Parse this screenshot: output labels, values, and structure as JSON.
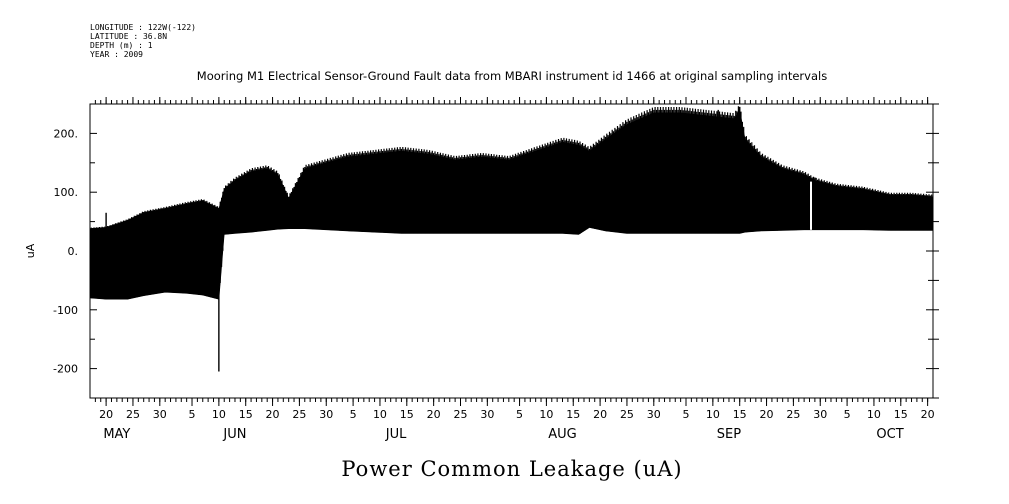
{
  "meta": {
    "lines": [
      "LONGITUDE : 122W(-122)",
      "LATITUDE : 36.8N",
      "DEPTH (m) : 1",
      "YEAR : 2009"
    ]
  },
  "chart_data": {
    "type": "line",
    "title": "Mooring M1 Electrical Sensor-Ground Fault data from MBARI instrument id 1466 at original sampling intervals",
    "xlabel": "Power Common Leakage (uA)",
    "ylabel": "uA",
    "xlim": [
      "2009-05-17",
      "2009-10-21"
    ],
    "ylim": [
      -250,
      250
    ],
    "y_ticks": [
      {
        "value": 200,
        "label": "200."
      },
      {
        "value": 100,
        "label": "100."
      },
      {
        "value": 0,
        "label": "0."
      },
      {
        "value": -100,
        "label": "-100"
      },
      {
        "value": -200,
        "label": "-200"
      }
    ],
    "x_ticks": [
      {
        "date": "2009-05-20",
        "label": "20"
      },
      {
        "date": "2009-05-25",
        "label": "25"
      },
      {
        "date": "2009-05-30",
        "label": "30"
      },
      {
        "date": "2009-06-05",
        "label": "5"
      },
      {
        "date": "2009-06-10",
        "label": "10"
      },
      {
        "date": "2009-06-15",
        "label": "15"
      },
      {
        "date": "2009-06-20",
        "label": "20"
      },
      {
        "date": "2009-06-25",
        "label": "25"
      },
      {
        "date": "2009-06-30",
        "label": "30"
      },
      {
        "date": "2009-07-05",
        "label": "5"
      },
      {
        "date": "2009-07-10",
        "label": "10"
      },
      {
        "date": "2009-07-15",
        "label": "15"
      },
      {
        "date": "2009-07-20",
        "label": "20"
      },
      {
        "date": "2009-07-25",
        "label": "25"
      },
      {
        "date": "2009-07-30",
        "label": "30"
      },
      {
        "date": "2009-08-05",
        "label": "5"
      },
      {
        "date": "2009-08-10",
        "label": "10"
      },
      {
        "date": "2009-08-15",
        "label": "15"
      },
      {
        "date": "2009-08-20",
        "label": "20"
      },
      {
        "date": "2009-08-25",
        "label": "25"
      },
      {
        "date": "2009-08-30",
        "label": "30"
      },
      {
        "date": "2009-09-05",
        "label": "5"
      },
      {
        "date": "2009-09-10",
        "label": "10"
      },
      {
        "date": "2009-09-15",
        "label": "15"
      },
      {
        "date": "2009-09-20",
        "label": "20"
      },
      {
        "date": "2009-09-25",
        "label": "25"
      },
      {
        "date": "2009-09-30",
        "label": "30"
      },
      {
        "date": "2009-10-05",
        "label": "5"
      },
      {
        "date": "2009-10-10",
        "label": "10"
      },
      {
        "date": "2009-10-15",
        "label": "15"
      },
      {
        "date": "2009-10-20",
        "label": "20"
      }
    ],
    "months": [
      {
        "date": "2009-05-22",
        "label": "MAY"
      },
      {
        "date": "2009-06-13",
        "label": "JUN"
      },
      {
        "date": "2009-07-13",
        "label": "JUL"
      },
      {
        "date": "2009-08-13",
        "label": "AUG"
      },
      {
        "date": "2009-09-13",
        "label": "SEP"
      },
      {
        "date": "2009-10-13",
        "label": "OCT"
      }
    ],
    "series": [
      {
        "color": "#000000",
        "envelope": {
          "dates": [
            "2009-05-17",
            "2009-05-20",
            "2009-05-24",
            "2009-05-27",
            "2009-05-31",
            "2009-06-04",
            "2009-06-07",
            "2009-06-10",
            "2009-06-11",
            "2009-06-13",
            "2009-06-16",
            "2009-06-19",
            "2009-06-21",
            "2009-06-23",
            "2009-06-26",
            "2009-06-30",
            "2009-07-04",
            "2009-07-09",
            "2009-07-14",
            "2009-07-19",
            "2009-07-24",
            "2009-07-29",
            "2009-08-03",
            "2009-08-08",
            "2009-08-13",
            "2009-08-16",
            "2009-08-18",
            "2009-08-21",
            "2009-08-25",
            "2009-08-30",
            "2009-09-04",
            "2009-09-09",
            "2009-09-14",
            "2009-09-15",
            "2009-09-16",
            "2009-09-19",
            "2009-09-23",
            "2009-09-27",
            "2009-09-29",
            "2009-10-03",
            "2009-10-08",
            "2009-10-13",
            "2009-10-17",
            "2009-10-21"
          ],
          "max": [
            38,
            40,
            52,
            65,
            72,
            80,
            85,
            72,
            105,
            120,
            135,
            140,
            130,
            90,
            140,
            150,
            160,
            165,
            170,
            165,
            155,
            160,
            155,
            170,
            185,
            180,
            170,
            190,
            215,
            235,
            235,
            230,
            225,
            240,
            190,
            160,
            140,
            130,
            120,
            110,
            105,
            95,
            95,
            92
          ],
          "min": [
            -80,
            -82,
            -82,
            -76,
            -70,
            -72,
            -75,
            -82,
            28,
            30,
            32,
            35,
            37,
            38,
            38,
            36,
            34,
            32,
            30,
            30,
            30,
            30,
            30,
            30,
            30,
            28,
            40,
            34,
            30,
            30,
            30,
            30,
            30,
            30,
            32,
            34,
            35,
            36,
            36,
            36,
            36,
            35,
            35,
            35
          ]
        },
        "spikes": [
          {
            "date": "2009-05-20",
            "min": 20,
            "max": 65
          },
          {
            "date": "2009-06-10",
            "min": -205,
            "max": 72
          },
          {
            "date": "2009-09-11",
            "min": 30,
            "max": 240
          },
          {
            "date": "2009-09-15",
            "min": 30,
            "max": 245
          },
          {
            "date": "2009-09-29",
            "min": 36,
            "max": 125
          }
        ]
      }
    ],
    "grid": false
  }
}
